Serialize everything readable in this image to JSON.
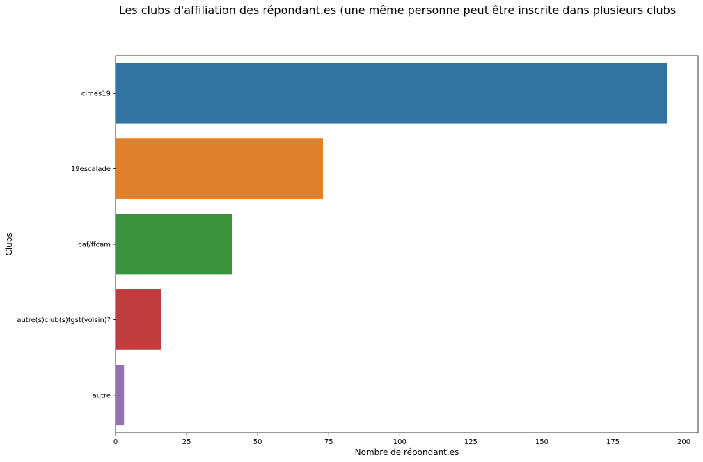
{
  "chart_data": {
    "type": "bar",
    "orientation": "horizontal",
    "title": "Les clubs d'affiliation des répondant.es (une même personne peut être inscrite dans plusieurs clubs",
    "xlabel": "Nombre de répondant.es",
    "ylabel": "Clubs",
    "categories": [
      "cimes19",
      "19escalade",
      "caf/ffcam",
      "autre(s)club(s)fgst(voisin)?",
      "autre"
    ],
    "values": [
      194,
      73,
      41,
      16,
      3
    ],
    "colors": [
      "#3274a1",
      "#e1812c",
      "#3a923a",
      "#c03d3e",
      "#9372b2"
    ],
    "xlim": [
      0,
      205
    ],
    "xticks": [
      0,
      25,
      50,
      75,
      100,
      125,
      150,
      175,
      200
    ],
    "grid": false,
    "legend": "none"
  }
}
